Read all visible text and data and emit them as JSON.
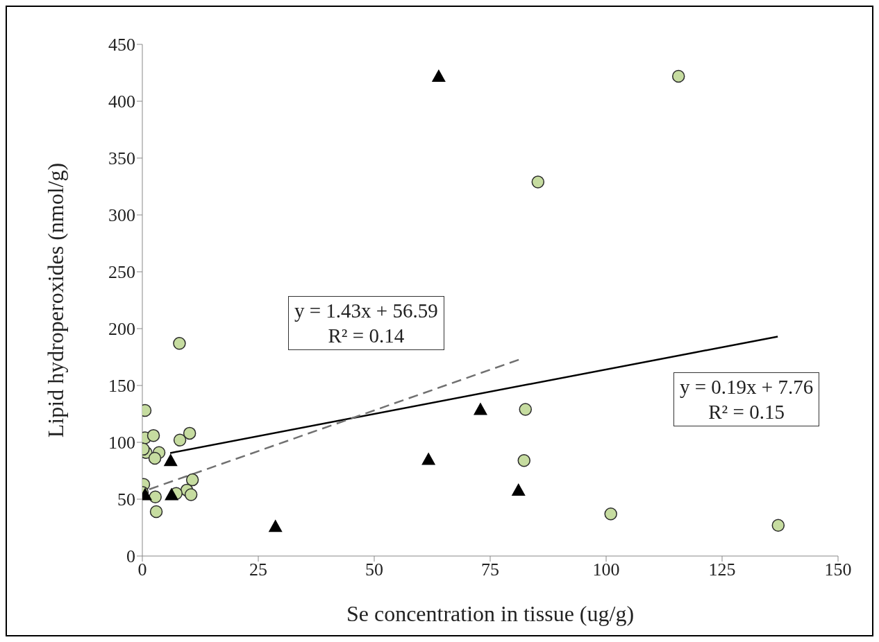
{
  "chart_data": {
    "type": "scatter",
    "xlabel": "Se concentration in tissue (ug/g)",
    "ylabel": "Lipid hydroperoxides (nmol/g)",
    "xlim": [
      0,
      150
    ],
    "xticks": [
      0,
      25,
      50,
      75,
      100,
      125,
      150
    ],
    "ylim": [
      0,
      450
    ],
    "yticks": [
      0,
      50,
      100,
      150,
      200,
      250,
      300,
      350,
      400,
      450
    ],
    "grid": false,
    "legend": false,
    "series": [
      {
        "marker": "circle",
        "color": "#c6dca0",
        "x": [
          8,
          0.6,
          0.6,
          2.4,
          8.1,
          10.2,
          0.8,
          3.6,
          2.7,
          0.3,
          0,
          2.8,
          3,
          10.8,
          9.6,
          10.5,
          7.3,
          115.6,
          85.3,
          82.6,
          82.3,
          101,
          137.1,
          0.2
        ],
        "values": [
          187,
          128,
          104,
          106,
          102,
          108,
          91,
          91,
          86,
          63,
          56,
          52,
          39,
          67,
          58,
          54,
          55,
          422,
          329,
          129,
          84,
          37,
          27,
          94
        ]
      },
      {
        "marker": "triangle",
        "color": "#000000",
        "x": [
          6.1,
          0.6,
          6.3,
          28.7,
          63.9,
          72.9,
          61.7,
          81.1
        ],
        "values": [
          84,
          54,
          54,
          26,
          422,
          129,
          85,
          58
        ]
      },
      {
        "type": "line",
        "line_style": "solid",
        "color": "#000000",
        "x": [
          6,
          137
        ],
        "values": [
          90.6,
          193
        ]
      },
      {
        "type": "line",
        "line_style": "dashed",
        "color": "#707070",
        "x": [
          1.5,
          81.6
        ],
        "values": [
          58.7,
          173.3
        ]
      }
    ],
    "annotations": [
      "y = 1.43x + 56.59\nR² = 0.14",
      "y = 0.19x + 7.76\nR² = 0.15"
    ]
  }
}
